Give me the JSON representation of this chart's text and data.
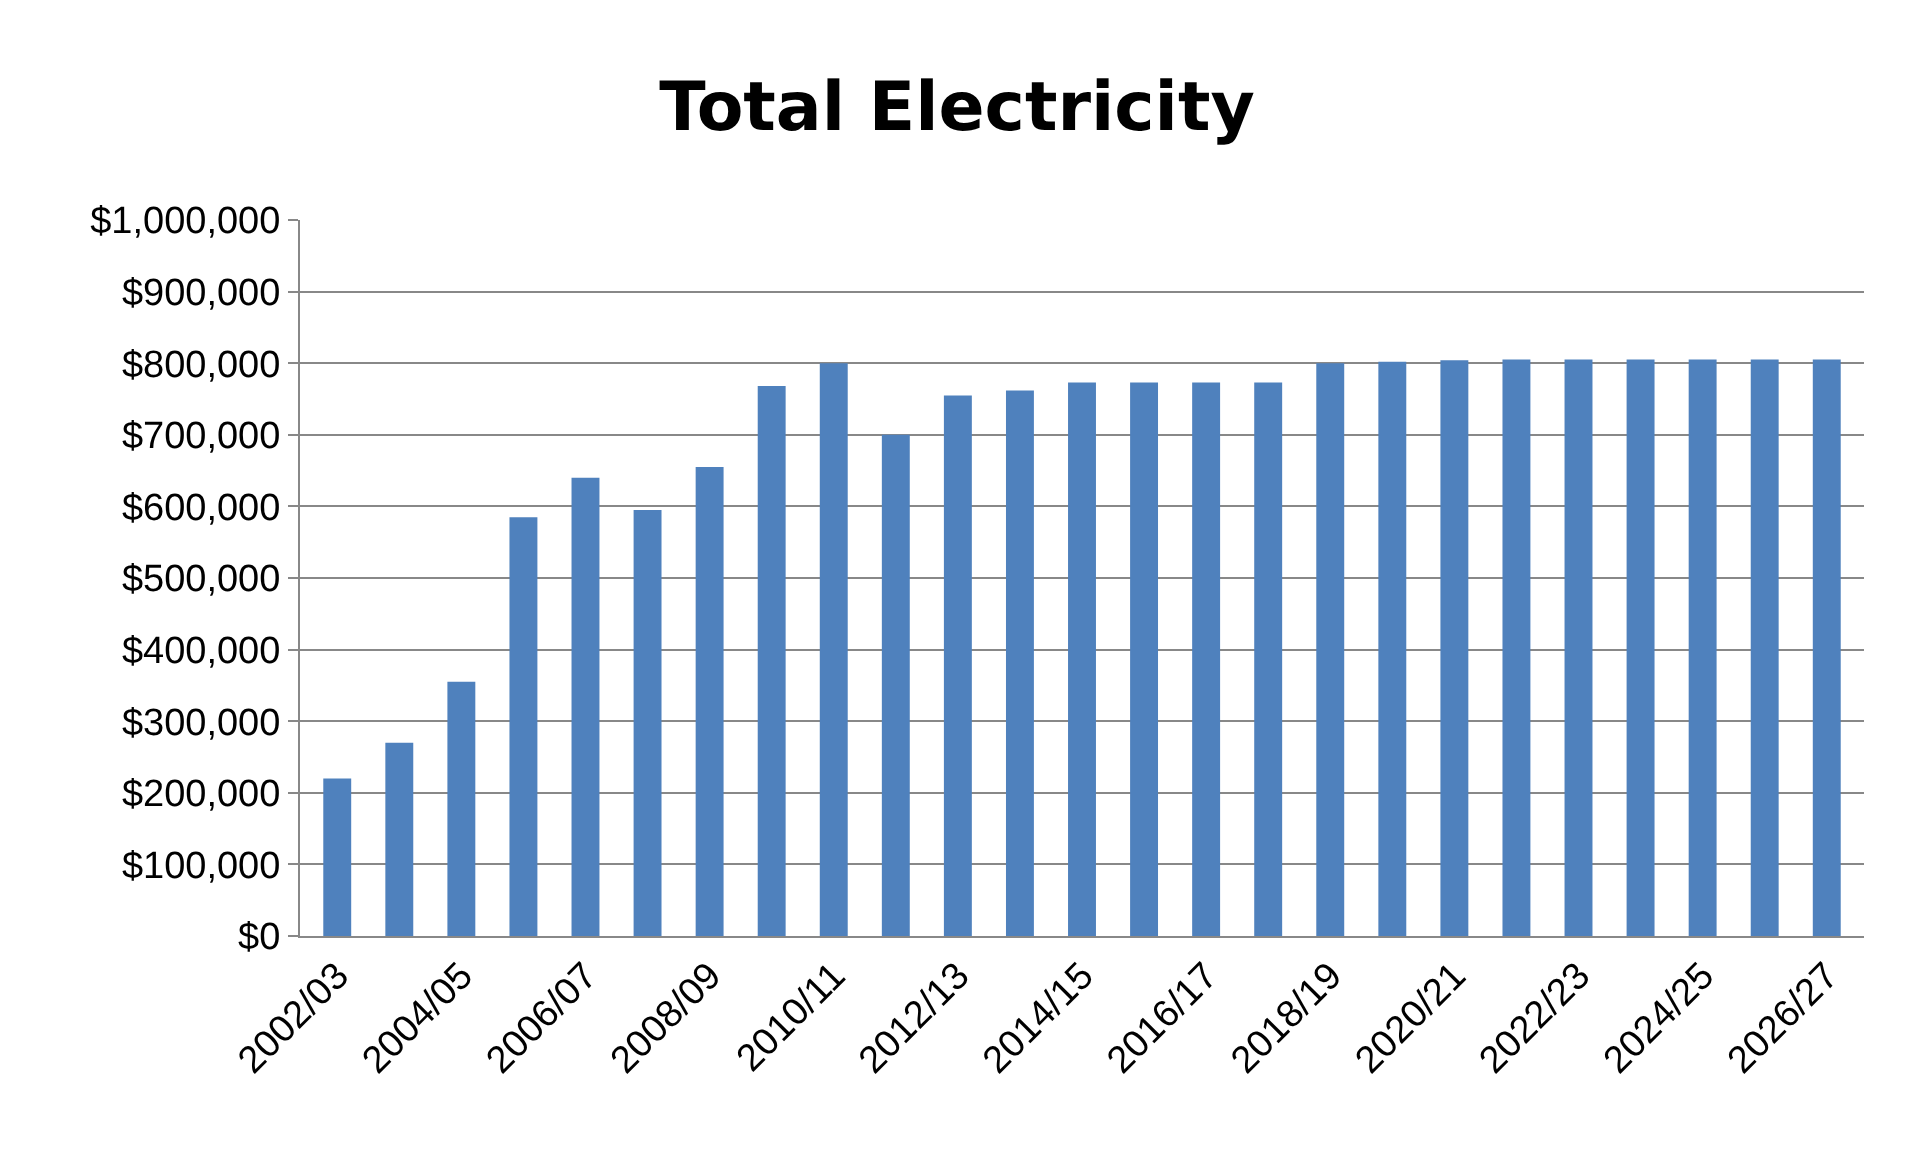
{
  "chart_data": {
    "type": "bar",
    "title": "Total Electricity",
    "categories": [
      "2002/03",
      null,
      "2004/05",
      null,
      "2006/07",
      null,
      "2008/09",
      null,
      "2010/11",
      null,
      "2012/13",
      null,
      "2014/15",
      null,
      "2016/17",
      null,
      "2018/19",
      null,
      "2020/21",
      null,
      "2022/23",
      null,
      "2024/25",
      null,
      "2026/27"
    ],
    "values": [
      220000,
      270000,
      355000,
      585000,
      640000,
      595000,
      655000,
      768000,
      800000,
      700000,
      755000,
      762000,
      773000,
      773000,
      773000,
      773000,
      800000,
      802000,
      804000,
      805000,
      805000,
      805000,
      805000,
      805000,
      805000
    ],
    "color": "#4f81bd",
    "ylim": [
      0,
      1000000
    ],
    "yticks": [
      {
        "value": 0,
        "label": "$0"
      },
      {
        "value": 100000,
        "label": "$100,000"
      },
      {
        "value": 200000,
        "label": "$200,000"
      },
      {
        "value": 300000,
        "label": "$300,000"
      },
      {
        "value": 400000,
        "label": "$400,000"
      },
      {
        "value": 500000,
        "label": "$500,000"
      },
      {
        "value": 600000,
        "label": "$600,000"
      },
      {
        "value": 700000,
        "label": "$700,000"
      },
      {
        "value": 800000,
        "label": "$800,000"
      },
      {
        "value": 900000,
        "label": "$900,000"
      },
      {
        "value": 1000000,
        "label": "$1,000,000"
      }
    ],
    "grid": "y",
    "legend": false
  }
}
